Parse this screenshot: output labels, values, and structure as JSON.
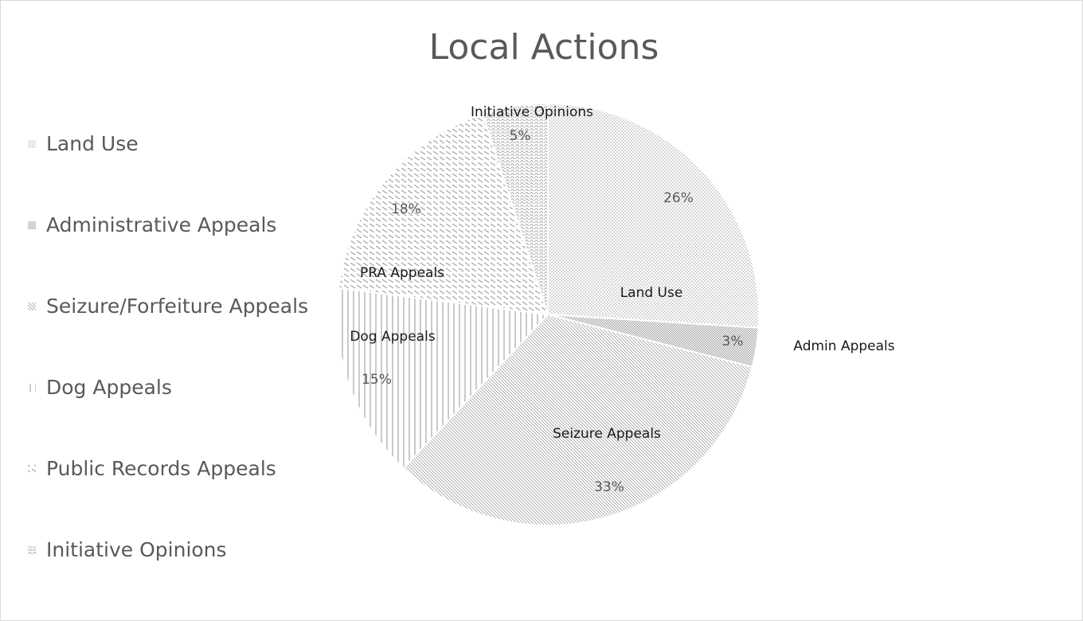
{
  "chart_data": {
    "type": "pie",
    "title": "Local Actions",
    "categories": [
      "Land Use",
      "Administrative Appeals",
      "Seizure/Forfeiture Appeals",
      "Dog Appeals",
      "Public Records Appeals",
      "Initiative Opinions"
    ],
    "values": [
      26,
      3,
      33,
      15,
      18,
      5
    ],
    "value_labels": [
      "26%",
      "3%",
      "33%",
      "15%",
      "18%",
      "5%"
    ],
    "slice_labels": [
      "Land Use",
      "Admin Appeals",
      "Seizure Appeals",
      "Dog Appeals",
      "PRA Appeals",
      "Initiative Opinions"
    ],
    "colors": [
      "#a6a6a6",
      "#a6a6a6",
      "#a6a6a6",
      "#a6a6a6",
      "#a6a6a6",
      "#a6a6a6"
    ],
    "legend": "left"
  }
}
